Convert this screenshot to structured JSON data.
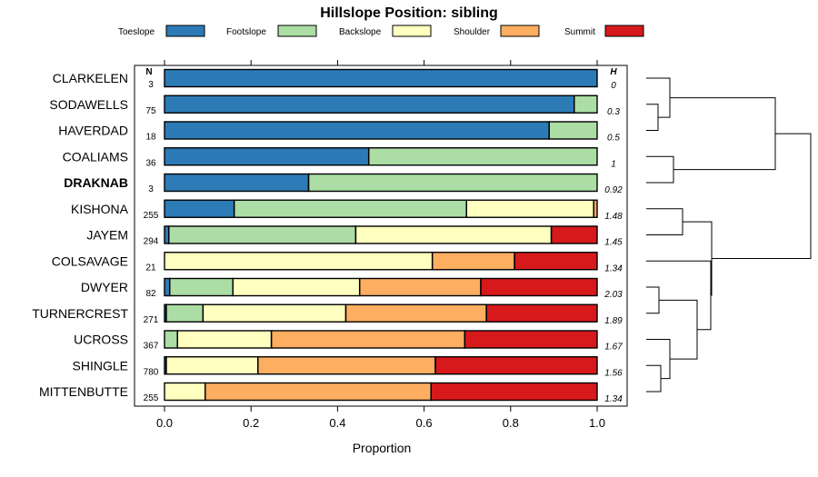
{
  "chart_data": {
    "type": "bar",
    "orientation": "horizontal",
    "stacked": true,
    "title": "Hillslope Position: sibling",
    "xlabel": "Proportion",
    "xlim": [
      0,
      1
    ],
    "xticks": [
      "0.0",
      "0.2",
      "0.4",
      "0.6",
      "0.8",
      "1.0"
    ],
    "legend_position": "top",
    "series": [
      {
        "name": "Toeslope",
        "color": "#2c7bb6"
      },
      {
        "name": "Footslope",
        "color": "#abdda4"
      },
      {
        "name": "Backslope",
        "color": "#ffffbf"
      },
      {
        "name": "Shoulder",
        "color": "#fdae61"
      },
      {
        "name": "Summit",
        "color": "#d7191c"
      }
    ],
    "n_header": "N",
    "h_header": "H",
    "rows": [
      {
        "label": "CLARKELEN",
        "bold": false,
        "n": "3",
        "h": "0",
        "values": [
          1.0,
          0,
          0,
          0,
          0
        ]
      },
      {
        "label": "SODAWELLS",
        "bold": false,
        "n": "75",
        "h": "0.3",
        "values": [
          0.947,
          0.053,
          0,
          0,
          0
        ]
      },
      {
        "label": "HAVERDAD",
        "bold": false,
        "n": "18",
        "h": "0.5",
        "values": [
          0.889,
          0.111,
          0,
          0,
          0
        ]
      },
      {
        "label": "COALIAMS",
        "bold": false,
        "n": "36",
        "h": "1",
        "values": [
          0.472,
          0.528,
          0,
          0,
          0
        ]
      },
      {
        "label": "DRAKNAB",
        "bold": true,
        "n": "3",
        "h": "0.92",
        "values": [
          0.333,
          0.667,
          0,
          0,
          0
        ]
      },
      {
        "label": "KISHONA",
        "bold": false,
        "n": "255",
        "h": "1.48",
        "values": [
          0.161,
          0.537,
          0.294,
          0.008,
          0
        ]
      },
      {
        "label": "JAYEM",
        "bold": false,
        "n": "294",
        "h": "1.45",
        "values": [
          0.01,
          0.432,
          0.452,
          0,
          0.106
        ]
      },
      {
        "label": "COLSAVAGE",
        "bold": false,
        "n": "21",
        "h": "1.34",
        "values": [
          0,
          0,
          0.619,
          0.19,
          0.191
        ]
      },
      {
        "label": "DWYER",
        "bold": false,
        "n": "82",
        "h": "2.03",
        "values": [
          0.012,
          0.146,
          0.293,
          0.28,
          0.269
        ]
      },
      {
        "label": "TURNERCREST",
        "bold": false,
        "n": "271",
        "h": "1.89",
        "values": [
          0.004,
          0.085,
          0.33,
          0.325,
          0.256
        ]
      },
      {
        "label": "UCROSS",
        "bold": false,
        "n": "367",
        "h": "1.67",
        "values": [
          0,
          0.03,
          0.217,
          0.447,
          0.306
        ]
      },
      {
        "label": "SHINGLE",
        "bold": false,
        "n": "780",
        "h": "1.56",
        "values": [
          0.004,
          0,
          0.212,
          0.41,
          0.374
        ]
      },
      {
        "label": "MITTENBUTTE",
        "bold": false,
        "n": "255",
        "h": "1.34",
        "values": [
          0,
          0,
          0.094,
          0.522,
          0.384
        ]
      }
    ]
  }
}
